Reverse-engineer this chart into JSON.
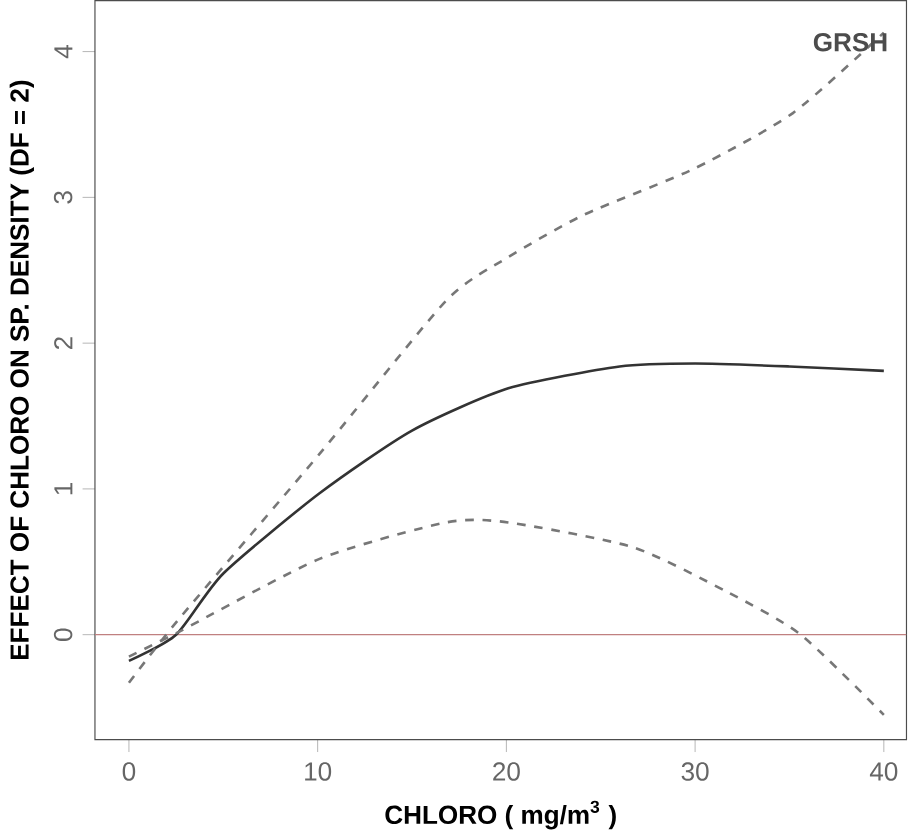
{
  "chart_data": {
    "type": "line",
    "xlabel": "CHLORO ( mg/m$^{3}$ )",
    "ylabel": "EFFECT OF CHLORO ON SP. DENSITY (DF = 2)",
    "xlim": [
      -1.8,
      41.2
    ],
    "ylim": [
      -0.72,
      4.35
    ],
    "xticks": [
      0,
      10,
      20,
      30,
      40
    ],
    "yticks": [
      0,
      1,
      2,
      3,
      4
    ],
    "grid": false,
    "annotations": [
      "GRSH"
    ],
    "ref_lines": [
      {
        "axis": "y",
        "value": 0,
        "color": "#c08080",
        "line_style": "solid"
      }
    ],
    "series": [
      {
        "color": "#333333",
        "line_style": "solid",
        "x": [
          0,
          2.5,
          5,
          10.1,
          15,
          20.1,
          26,
          30,
          35,
          40
        ],
        "values": [
          -0.18,
          0.0,
          0.42,
          0.97,
          1.4,
          1.69,
          1.84,
          1.86,
          1.84,
          1.81
        ]
      },
      {
        "color": "#777777",
        "line_style": "dashed",
        "x": [
          0,
          2.6,
          10.1,
          16.8,
          20.1,
          24.1,
          30,
          35.2,
          40
        ],
        "values": [
          -0.33,
          0.1,
          1.24,
          2.29,
          2.59,
          2.88,
          3.2,
          3.58,
          4.13
        ]
      },
      {
        "color": "#777777",
        "line_style": "dashed",
        "x": [
          0,
          2.8,
          10.1,
          16.8,
          20.1,
          26.7,
          31.6,
          35.6,
          40
        ],
        "values": [
          -0.15,
          0.03,
          0.52,
          0.77,
          0.77,
          0.6,
          0.3,
          0.0,
          -0.55
        ]
      }
    ]
  }
}
